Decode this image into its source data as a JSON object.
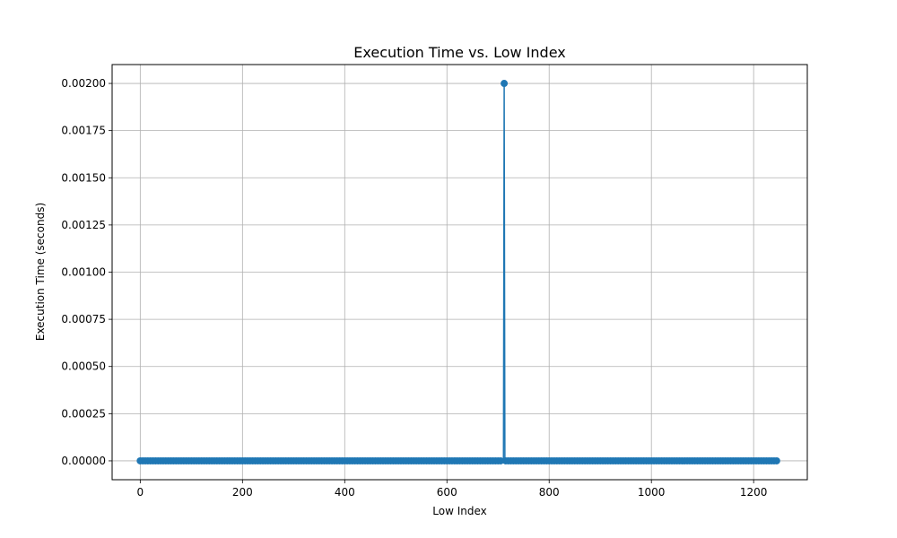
{
  "chart_data": {
    "type": "line",
    "title": "Execution Time vs. Low Index",
    "xlabel": "Low Index",
    "ylabel": "Execution Time (seconds)",
    "xlim": [
      -55,
      1305
    ],
    "ylim": [
      -0.0001,
      0.0021
    ],
    "x_ticks": [
      0,
      200,
      400,
      600,
      800,
      1000,
      1200
    ],
    "x_tick_labels": [
      "0",
      "200",
      "400",
      "600",
      "800",
      "1000",
      "1200"
    ],
    "y_ticks": [
      0,
      0.00025,
      0.0005,
      0.00075,
      0.001,
      0.00125,
      0.0015,
      0.00175,
      0.002
    ],
    "y_tick_labels": [
      "0.00000",
      "0.00025",
      "0.00050",
      "0.00075",
      "0.00100",
      "0.00125",
      "0.00150",
      "0.00175",
      "0.00200"
    ],
    "grid": true,
    "series": [
      {
        "color": "#1f77b4",
        "marker": "circle",
        "x_range": [
          0,
          1245
        ],
        "baseline_value": 0,
        "spike": {
          "x": 712,
          "y": 0.002
        }
      }
    ]
  }
}
